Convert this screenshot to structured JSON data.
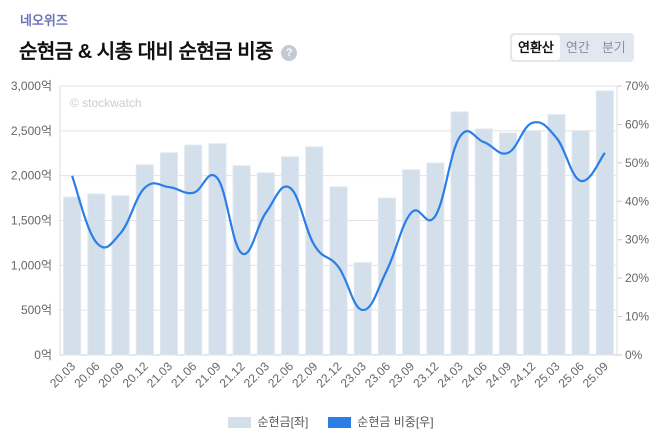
{
  "header": {
    "company": "네오위즈",
    "title": "순현금 & 시총 대비 순현금 비중",
    "help_icon": "question-circle-icon",
    "period_tabs": [
      {
        "label": "연환산",
        "active": true
      },
      {
        "label": "연간",
        "active": false
      },
      {
        "label": "분기",
        "active": false
      }
    ]
  },
  "watermark": "© stockwatch",
  "colors": {
    "bar": "#d3dfeb",
    "line": "#2b7ee6"
  },
  "chart_data": {
    "type": "bar+line",
    "categories": [
      "20.03",
      "20.06",
      "20.09",
      "20.12",
      "21.03",
      "21.06",
      "21.09",
      "21.12",
      "22.03",
      "22.06",
      "22.09",
      "22.12",
      "23.03",
      "23.06",
      "23.09",
      "23.12",
      "24.03",
      "24.06",
      "24.09",
      "24.12",
      "25.03",
      "25.06",
      "25.09"
    ],
    "series": [
      {
        "name": "순현금[좌]",
        "type": "bar",
        "axis": "left",
        "values": [
          1760,
          1795,
          1775,
          2120,
          2255,
          2340,
          2355,
          2110,
          2030,
          2210,
          2320,
          1875,
          1030,
          1750,
          2065,
          2140,
          2710,
          2520,
          2475,
          2500,
          2680,
          2500,
          2945
        ]
      },
      {
        "name": "순현금 비중[우]",
        "type": "line",
        "axis": "right",
        "values": [
          46.6,
          29.3,
          31.7,
          43.5,
          43.7,
          42.2,
          46.0,
          26.5,
          37.0,
          43.5,
          28.6,
          22.9,
          11.7,
          22.1,
          37.0,
          36.2,
          56.7,
          55.4,
          52.6,
          60.4,
          56.5,
          45.3,
          52.6
        ]
      }
    ],
    "left_axis": {
      "ticks": [
        "0억",
        "500억",
        "1,000억",
        "1,500억",
        "2,000억",
        "2,500억",
        "3,000억"
      ],
      "range": [
        0,
        3000
      ]
    },
    "right_axis": {
      "ticks": [
        "0%",
        "10%",
        "20%",
        "30%",
        "40%",
        "50%",
        "60%",
        "70%"
      ],
      "range": [
        0,
        70
      ]
    },
    "grid": true,
    "legend": "bottom"
  }
}
